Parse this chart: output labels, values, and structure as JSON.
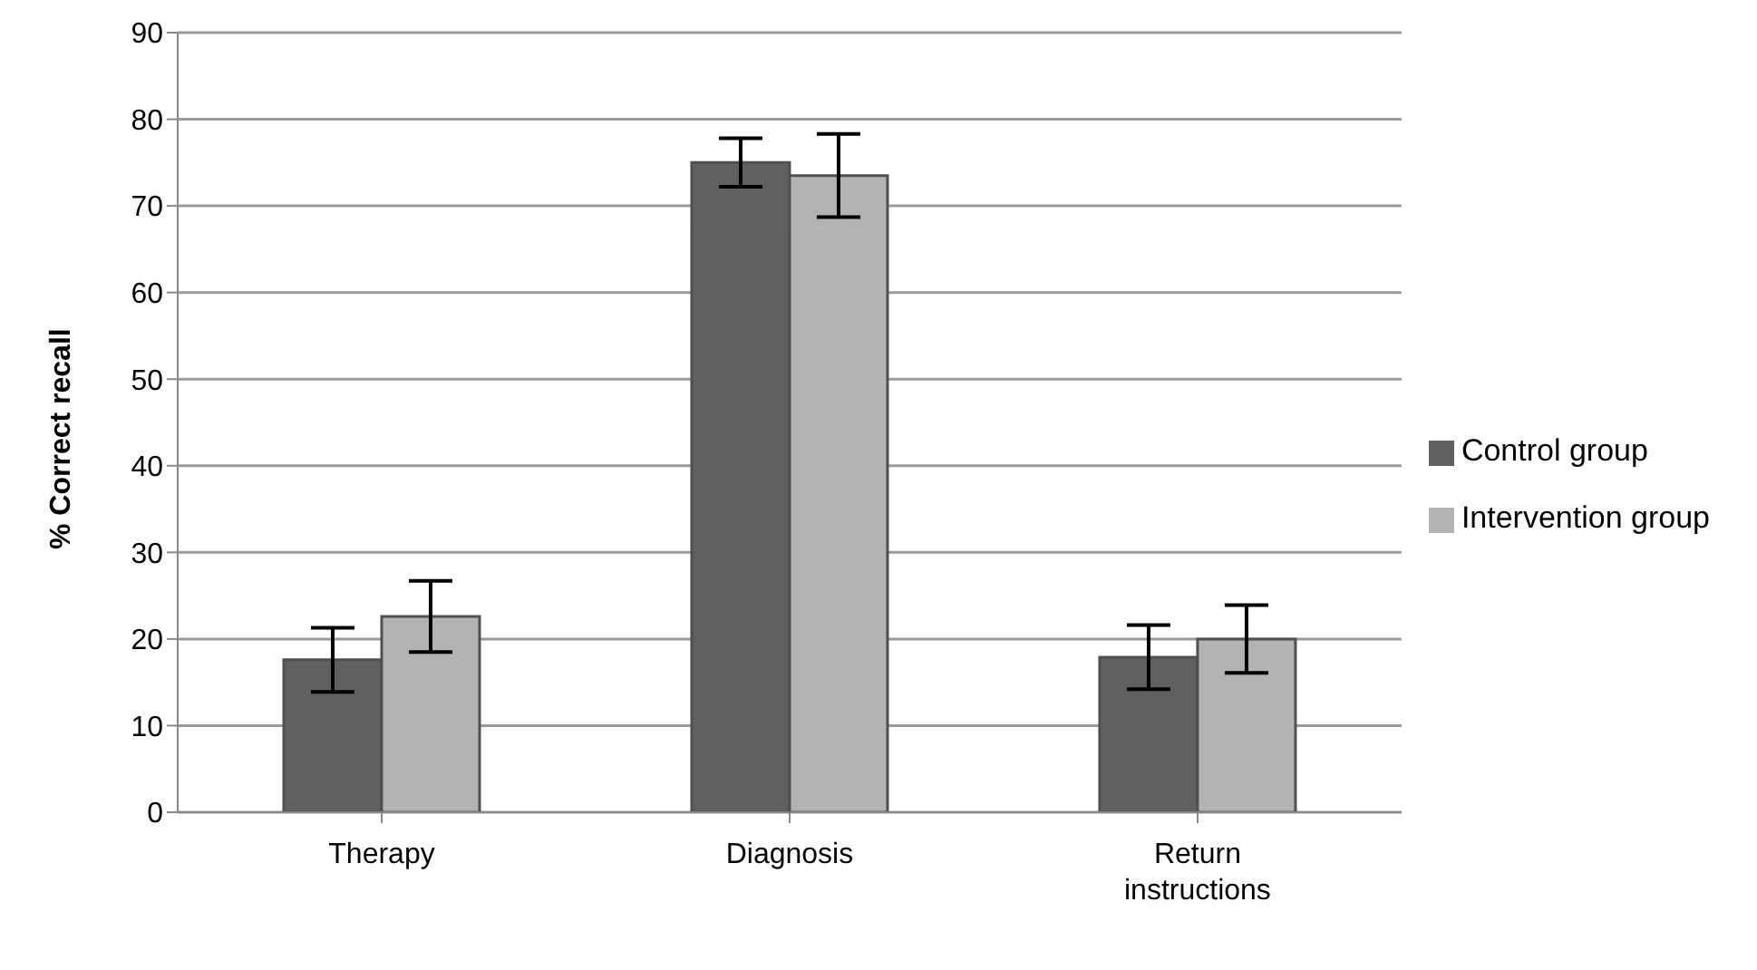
{
  "chart_data": {
    "type": "bar",
    "ylabel": "% Correct recall",
    "categories": [
      "Therapy",
      "Diagnosis",
      "Return instructions"
    ],
    "series": [
      {
        "name": "Control group",
        "color": "#606060",
        "values": [
          17.6,
          75.0,
          17.9
        ],
        "errors": [
          3.7,
          2.8,
          3.7
        ]
      },
      {
        "name": "Intervention group",
        "color": "#b3b3b3",
        "values": [
          22.6,
          73.5,
          20.0
        ],
        "errors": [
          4.1,
          4.8,
          3.9
        ]
      }
    ],
    "ylim": [
      0,
      90
    ],
    "yticks": [
      0,
      10,
      20,
      30,
      40,
      50,
      60,
      70,
      80,
      90
    ],
    "grid": "y",
    "legend": "right"
  }
}
